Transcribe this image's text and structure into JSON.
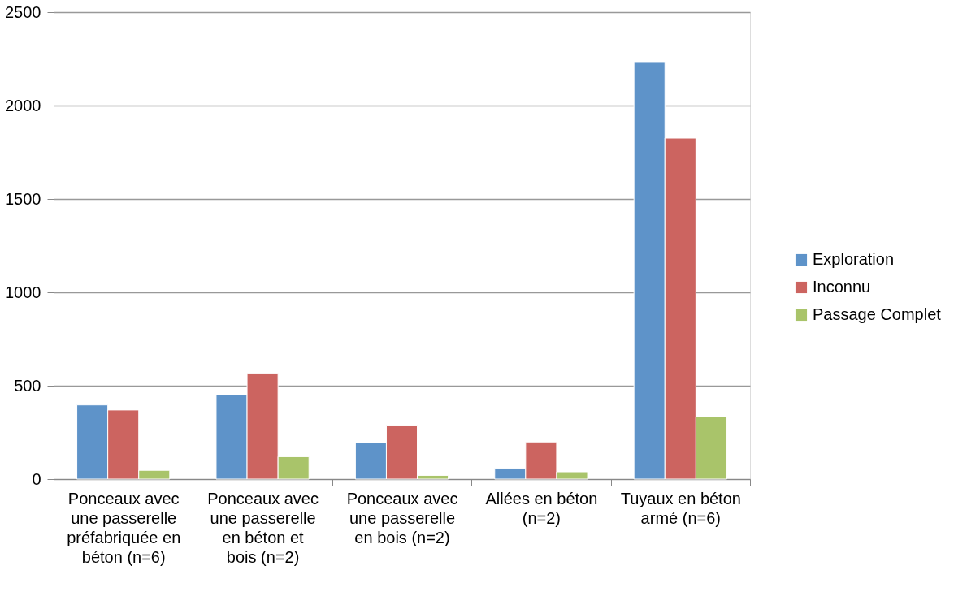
{
  "chart_data": {
    "type": "bar",
    "categories": [
      "Ponceaux avec une passerelle préfabriquée en béton (n=6)",
      "Ponceaux avec une passerelle en béton et bois (n=2)",
      "Ponceaux avec une passerelle en bois (n=2)",
      "Allées en béton (n=2)",
      "Tuyaux en béton armé (n=6)"
    ],
    "series": [
      {
        "name": "Exploration",
        "color": "#5e93c9",
        "values": [
          397,
          451,
          196,
          58,
          2235
        ]
      },
      {
        "name": "Inconnu",
        "color": "#cc6460",
        "values": [
          370,
          566,
          285,
          199,
          1826
        ]
      },
      {
        "name": "Passage Complet",
        "color": "#a9c46a",
        "values": [
          47,
          120,
          20,
          39,
          335
        ]
      }
    ],
    "ylim": [
      0,
      2500
    ],
    "yticks": [
      0,
      500,
      1000,
      1500,
      2000,
      2500
    ],
    "grid": "y",
    "legend": "right"
  }
}
